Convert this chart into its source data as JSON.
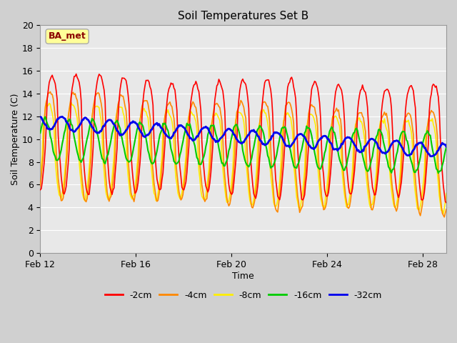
{
  "title": "Soil Temperatures Set B",
  "xlabel": "Time",
  "ylabel": "Soil Temperature (C)",
  "annotation": "BA_met",
  "ylim": [
    0,
    20
  ],
  "x_tick_labels": [
    "Feb 12",
    "Feb 16",
    "Feb 20",
    "Feb 24",
    "Feb 28"
  ],
  "x_tick_positions": [
    0,
    4,
    8,
    12,
    16
  ],
  "fig_bg_color": "#d0d0d0",
  "plot_bg_color": "#e8e8e8",
  "grid_color": "#ffffff",
  "series": {
    "2cm": {
      "color": "#ff0000",
      "linewidth": 1.2
    },
    "4cm": {
      "color": "#ff8800",
      "linewidth": 1.2
    },
    "8cm": {
      "color": "#ffee00",
      "linewidth": 1.2
    },
    "16cm": {
      "color": "#00cc00",
      "linewidth": 1.5
    },
    "32cm": {
      "color": "#0000ee",
      "linewidth": 2.0
    }
  },
  "legend_labels": [
    "-2cm",
    "-4cm",
    "-8cm",
    "-16cm",
    "-32cm"
  ],
  "legend_colors": [
    "#ff0000",
    "#ff8800",
    "#ffee00",
    "#00cc00",
    "#0000ee"
  ]
}
